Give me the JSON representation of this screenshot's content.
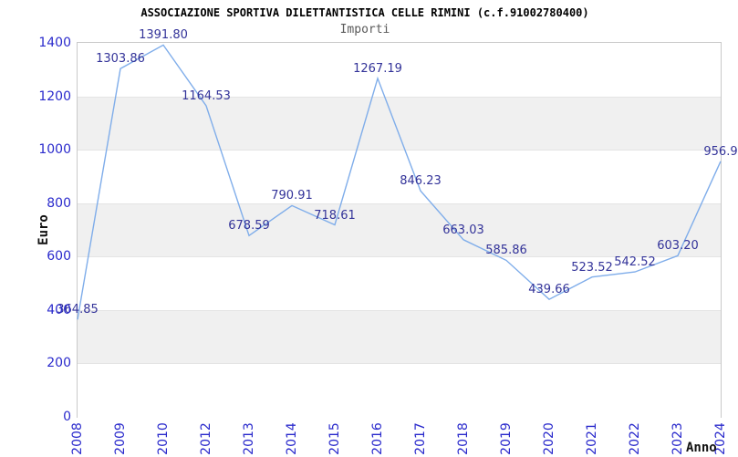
{
  "header": {
    "title": "ASSOCIAZIONE SPORTIVA DILETTANTISTICA CELLE RIMINI (c.f.91002780400)",
    "subtitle": "Importi"
  },
  "chart_data": {
    "type": "line",
    "title": "ASSOCIAZIONE SPORTIVA DILETTANTISTICA CELLE RIMINI (c.f.91002780400)",
    "subtitle": "Importi",
    "xlabel": "Anno",
    "ylabel": "Euro",
    "categories": [
      "2008",
      "2009",
      "2010",
      "2012",
      "2013",
      "2014",
      "2015",
      "2016",
      "2017",
      "2018",
      "2019",
      "2020",
      "2021",
      "2022",
      "2023",
      "2024"
    ],
    "values": [
      364.85,
      1303.86,
      1391.8,
      1164.53,
      678.59,
      790.91,
      718.61,
      1267.19,
      846.23,
      663.03,
      585.86,
      439.66,
      523.52,
      542.52,
      603.2,
      956.9
    ],
    "point_labels": [
      "364.85",
      "1303.86",
      "1391.80",
      "1164.53",
      "678.59",
      "790.91",
      "718.61",
      "1267.19",
      "846.23",
      "663.03",
      "585.86",
      "439.66",
      "523.52",
      "542.52",
      "603.20",
      "956.9"
    ],
    "yticks": [
      0,
      200,
      400,
      600,
      800,
      1000,
      1200,
      1400
    ],
    "ylim": [
      0,
      1400
    ],
    "grid": "horizontal-bands",
    "legend": "none",
    "colors": {
      "line": "#7fadea",
      "data_label": "#333399",
      "tick_label": "#2a2acc",
      "band_fill": "#f0f0f0",
      "band_line": "#e4e4e4",
      "plot_border": "#c9c9c9",
      "title": "#000000",
      "subtitle": "#5a5a5a"
    }
  }
}
